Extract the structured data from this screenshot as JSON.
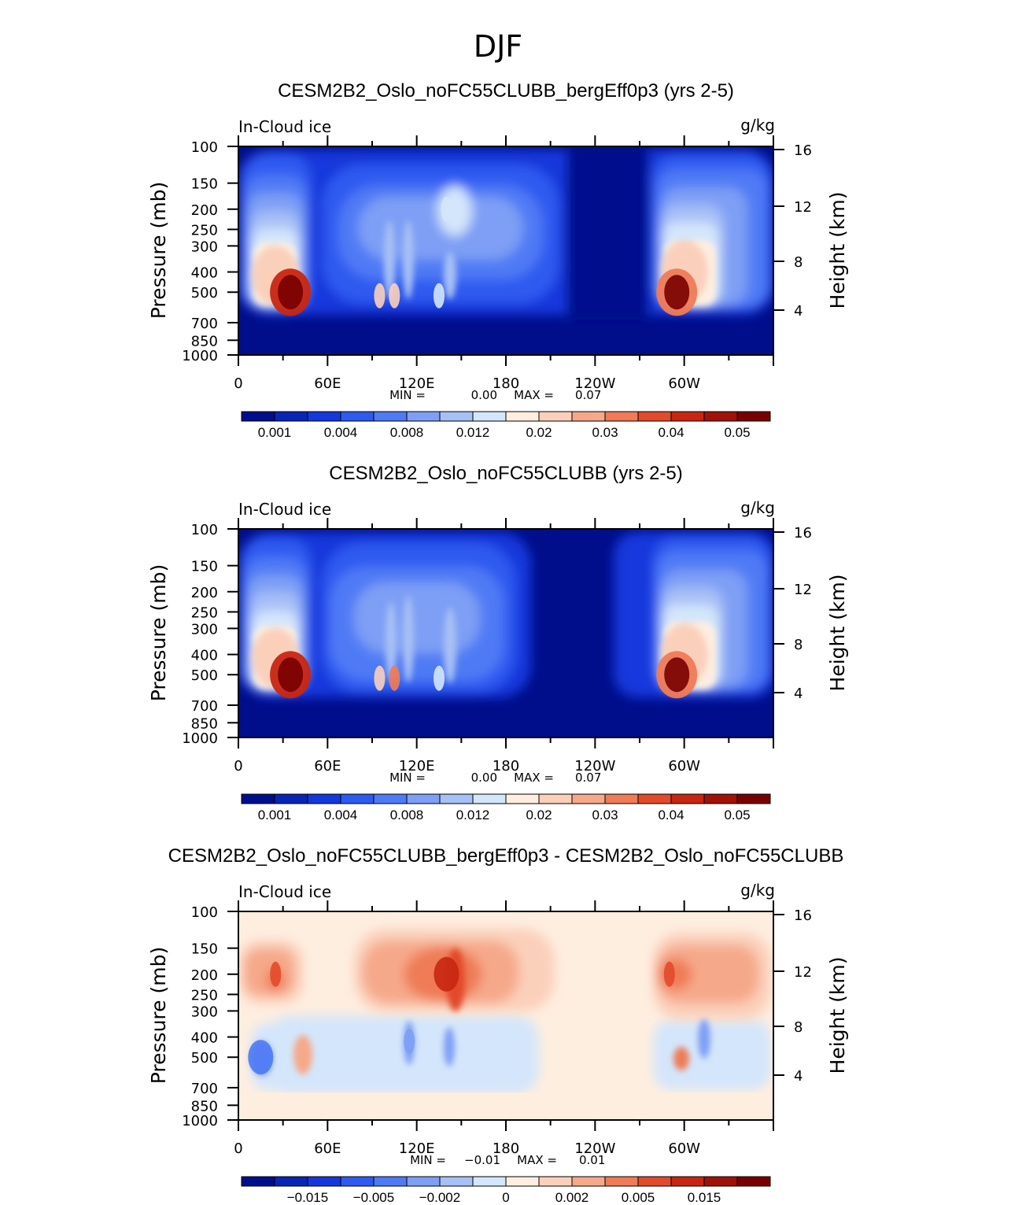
{
  "figure_title": "DJF",
  "chart_data": [
    {
      "type": "heatmap",
      "title": "CESM2B2_Oslo_noFC55CLUBB_bergEff0p3 (yrs 2-5)",
      "variable_label": "In-Cloud ice",
      "units_label": "g/kg",
      "xlabel": "",
      "ylabel": "Pressure (mb)",
      "y2label": "Height (km)",
      "x_ticks": [
        "0",
        "60E",
        "120E",
        "180",
        "120W",
        "60W"
      ],
      "y_ticks": [
        "100",
        "150",
        "200",
        "250",
        "300",
        "400",
        "500",
        "700",
        "850",
        "1000"
      ],
      "y2_ticks": [
        "16",
        "12",
        "8",
        "4"
      ],
      "stats": {
        "min_label": "MIN =",
        "min": "0.00",
        "max_label": "MAX =",
        "max": "0.07"
      },
      "colorbar_labels": [
        "0.001",
        "0.004",
        "0.008",
        "0.012",
        "0.02",
        "0.03",
        "0.04",
        "0.05"
      ],
      "features": [
        {
          "lon": 35,
          "p": 500,
          "value": 0.07
        },
        {
          "lon": 95,
          "p": 520,
          "value": 0.02
        },
        {
          "lon": 105,
          "p": 520,
          "value": 0.02
        },
        {
          "lon": 135,
          "p": 520,
          "value": 0.012
        },
        {
          "lon": 140,
          "p": 200,
          "value": 0.012
        },
        {
          "lon": 295,
          "p": 500,
          "value": 0.05
        }
      ]
    },
    {
      "type": "heatmap",
      "title": "CESM2B2_Oslo_noFC55CLUBB (yrs 2-5)",
      "variable_label": "In-Cloud ice",
      "units_label": "g/kg",
      "xlabel": "",
      "ylabel": "Pressure (mb)",
      "y2label": "Height (km)",
      "x_ticks": [
        "0",
        "60E",
        "120E",
        "180",
        "120W",
        "60W"
      ],
      "y_ticks": [
        "100",
        "150",
        "200",
        "250",
        "300",
        "400",
        "500",
        "700",
        "850",
        "1000"
      ],
      "y2_ticks": [
        "16",
        "12",
        "8",
        "4"
      ],
      "stats": {
        "min_label": "MIN =",
        "min": "0.00",
        "max_label": "MAX =",
        "max": "0.07"
      },
      "colorbar_labels": [
        "0.001",
        "0.004",
        "0.008",
        "0.012",
        "0.02",
        "0.03",
        "0.04",
        "0.05"
      ],
      "features": [
        {
          "lon": 35,
          "p": 500,
          "value": 0.07
        },
        {
          "lon": 95,
          "p": 520,
          "value": 0.02
        },
        {
          "lon": 105,
          "p": 520,
          "value": 0.03
        },
        {
          "lon": 135,
          "p": 520,
          "value": 0.012
        },
        {
          "lon": 295,
          "p": 500,
          "value": 0.05
        }
      ]
    },
    {
      "type": "heatmap",
      "title": "CESM2B2_Oslo_noFC55CLUBB_bergEff0p3 - CESM2B2_Oslo_noFC55CLUBB",
      "variable_label": "In-Cloud ice",
      "units_label": "g/kg",
      "xlabel": "",
      "ylabel": "Pressure (mb)",
      "y2label": "Height (km)",
      "x_ticks": [
        "0",
        "60E",
        "120E",
        "180",
        "120W",
        "60W"
      ],
      "y_ticks": [
        "100",
        "150",
        "200",
        "250",
        "300",
        "400",
        "500",
        "700",
        "850",
        "1000"
      ],
      "y2_ticks": [
        "16",
        "12",
        "8",
        "4"
      ],
      "stats": {
        "min_label": "MIN =",
        "min": "−0.01",
        "max_label": "MAX =",
        "max": "0.01"
      },
      "colorbar_labels": [
        "−0.015",
        "−0.005",
        "−0.002",
        "0",
        "0.002",
        "0.005",
        "0.015"
      ],
      "features": [
        {
          "lon": 140,
          "p": 200,
          "value": 0.01
        },
        {
          "lon": 25,
          "p": 200,
          "value": 0.005
        },
        {
          "lon": 290,
          "p": 200,
          "value": 0.005
        },
        {
          "lon": 15,
          "p": 500,
          "value": -0.01
        },
        {
          "lon": 115,
          "p": 420,
          "value": -0.005
        }
      ]
    }
  ],
  "palette": {
    "seq": [
      "#000e8c",
      "#0a24b5",
      "#1438dc",
      "#2f5af0",
      "#4f7af5",
      "#7e9ff5",
      "#a7c0f5",
      "#d4e6fb",
      "#feeee0",
      "#fbd0bb",
      "#f6a98a",
      "#ef7b57",
      "#e24a2c",
      "#c82612",
      "#a01208",
      "#780000"
    ],
    "div": [
      "#000e8c",
      "#0a24b5",
      "#1438dc",
      "#2f5af0",
      "#4f7af5",
      "#7e9ff5",
      "#a7c0f5",
      "#d4e6fb",
      "#feeee0",
      "#fbd0bb",
      "#f6a98a",
      "#ef7b57",
      "#e24a2c",
      "#c82612",
      "#a01208",
      "#780000"
    ]
  }
}
